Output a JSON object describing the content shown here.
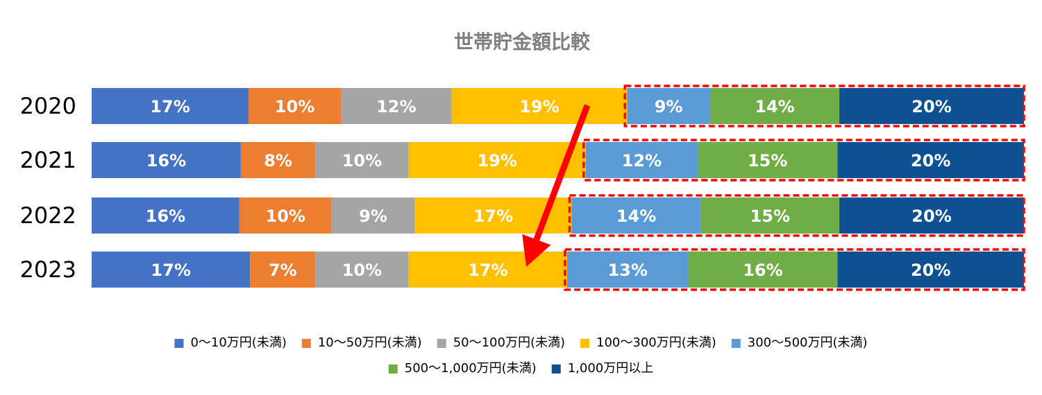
{
  "chart_data": {
    "type": "bar",
    "orientation": "horizontal",
    "stacked": true,
    "normalized": true,
    "title": "世帯貯金額比較",
    "categories": [
      "2020",
      "2021",
      "2022",
      "2023"
    ],
    "value_format": "percent",
    "series": [
      {
        "name": "0〜10万円(未満)",
        "color": "#4472c4",
        "values": [
          17,
          16,
          16,
          17
        ]
      },
      {
        "name": "10〜50万円(未満)",
        "color": "#ed7d31",
        "values": [
          10,
          8,
          10,
          7
        ]
      },
      {
        "name": "50〜100万円(未満)",
        "color": "#a5a5a5",
        "values": [
          12,
          10,
          9,
          10
        ]
      },
      {
        "name": "100〜300万円(未満)",
        "color": "#ffc000",
        "values": [
          19,
          19,
          17,
          17
        ]
      },
      {
        "name": "300〜500万円(未満)",
        "color": "#5b9bd5",
        "values": [
          9,
          12,
          14,
          13
        ]
      },
      {
        "name": "500〜1,000万円(未満)",
        "color": "#70ad47",
        "values": [
          14,
          15,
          15,
          16
        ]
      },
      {
        "name": "1,000万円以上",
        "color": "#0e5193",
        "values": [
          20,
          20,
          20,
          20
        ]
      }
    ],
    "legend_position": "bottom",
    "grid": false,
    "annotations": {
      "highlight_boxes": {
        "style": "red dashed outline",
        "color": "#ff0000",
        "from_series_index": 4
      },
      "arrow": {
        "color": "#ff0000",
        "from_category": "2020",
        "to_category": "2023"
      }
    }
  }
}
